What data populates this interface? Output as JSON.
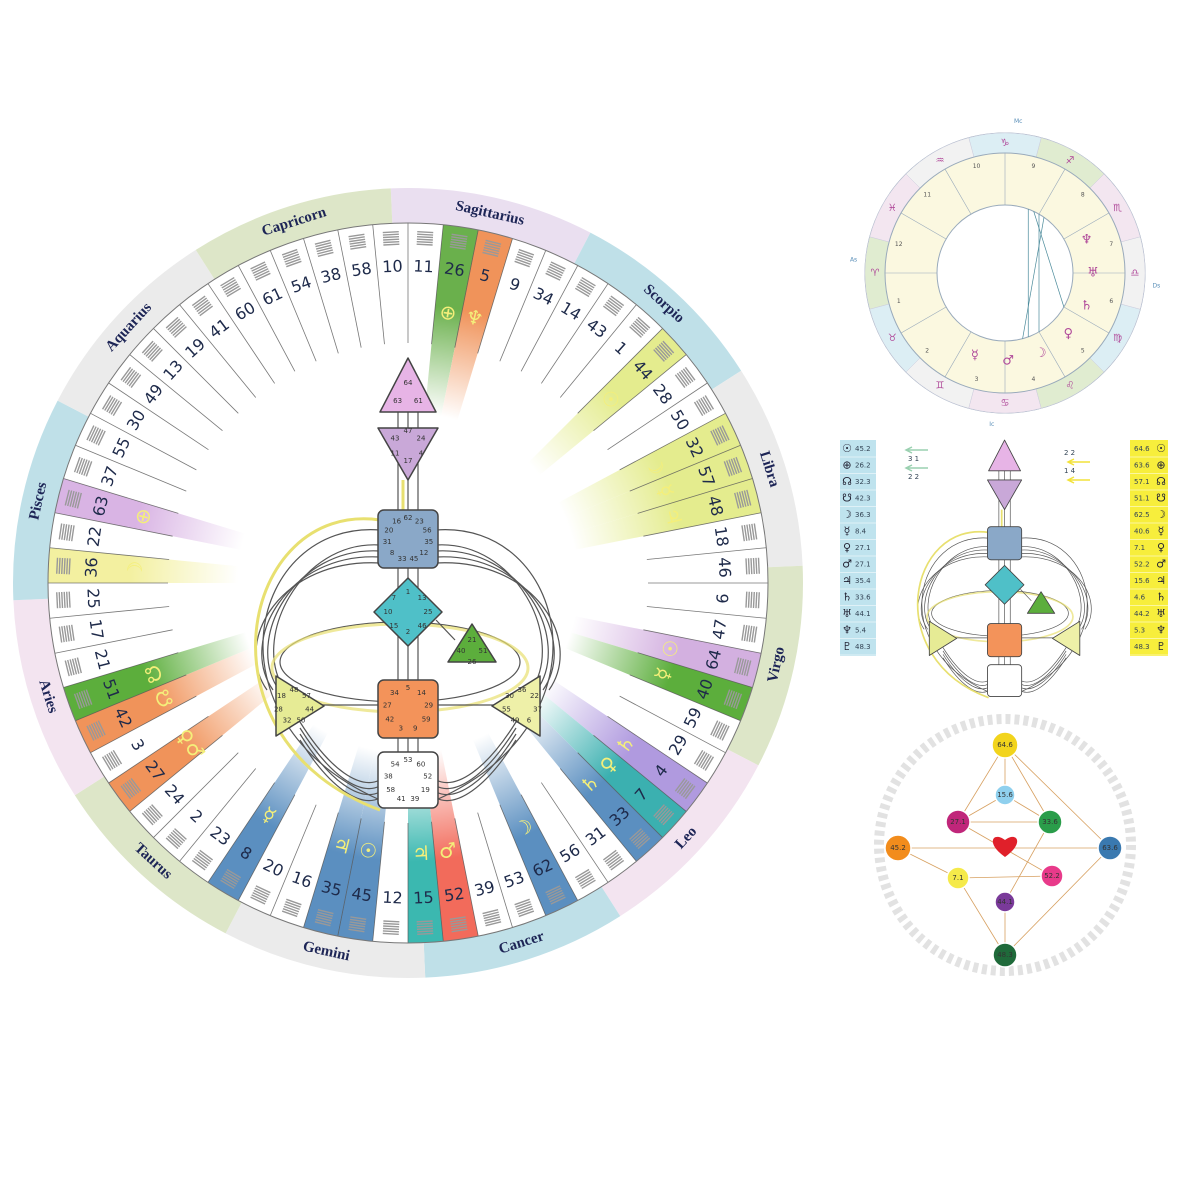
{
  "mandala": {
    "signs": [
      "Sagittarius",
      "Scorpio",
      "Libra",
      "Virgo",
      "Leo",
      "Cancer",
      "Gemini",
      "Taurus",
      "Aries",
      "Pisces",
      "Aquarius",
      "Capricorn"
    ],
    "sign_colors": [
      "#eadff0",
      "#bfe0e8",
      "#ebebeb",
      "#dde6c8",
      "#f3e4f0",
      "#bfe0e8",
      "#ebebeb",
      "#dde6c8",
      "#f3e4f0",
      "#bfe0e8",
      "#ebebeb",
      "#dde6c8"
    ],
    "gates": [
      11,
      26,
      5,
      9,
      34,
      14,
      43,
      1,
      44,
      28,
      50,
      32,
      57,
      48,
      18,
      46,
      6,
      47,
      64,
      40,
      59,
      29,
      4,
      7,
      33,
      31,
      56,
      62,
      53,
      39,
      52,
      15,
      12,
      45,
      35,
      16,
      20,
      8,
      23,
      2,
      24,
      27,
      3,
      42,
      51,
      21,
      17,
      25,
      36,
      22,
      63,
      37,
      55,
      30,
      49,
      13,
      19,
      41,
      60,
      61,
      54,
      38,
      58,
      10
    ],
    "gate_colors": [
      null,
      "#6ab04c",
      "#f0935a",
      null,
      null,
      null,
      null,
      null,
      "#e4ec8e",
      null,
      null,
      "#e4ec8e",
      "#e4ec8e",
      "#e4ec8e",
      null,
      null,
      null,
      null,
      "#d3b0e0",
      "#5cae3c",
      null,
      null,
      "#b09adf",
      "#3bb0b0",
      "#5b8fc0",
      null,
      null,
      "#5b8fc0",
      null,
      null,
      "#f26b5b",
      "#3bb8b0",
      null,
      "#5b8fc0",
      "#5b8fc0",
      null,
      null,
      "#5b8fc0",
      null,
      null,
      null,
      "#f0935a",
      null,
      "#f0935a",
      "#5cae3c",
      null,
      null,
      null,
      "#f3f0a0",
      null,
      "#d9b4e4",
      null,
      null,
      null,
      null,
      null,
      null,
      null,
      null,
      null,
      null,
      null,
      null,
      null
    ],
    "gate_symbols": [
      null,
      "⊕",
      "♆",
      null,
      null,
      null,
      null,
      null,
      "☉",
      null,
      null,
      "☽",
      "☿",
      "♃",
      null,
      null,
      null,
      null,
      "☉",
      "☿",
      null,
      null,
      "♄",
      "♀",
      "♄",
      null,
      null,
      "☽",
      null,
      null,
      "♂",
      "♃",
      null,
      "☉",
      "♃",
      null,
      null,
      "☿",
      null,
      null,
      null,
      "♀♂",
      null,
      "☋",
      "☊",
      null,
      null,
      null,
      "☽",
      null,
      "⊕",
      null,
      null,
      null,
      null,
      null,
      null,
      null,
      null,
      null,
      null,
      null,
      null,
      null
    ],
    "centers": {
      "head": [
        64,
        61,
        63
      ],
      "ajna": [
        47,
        24,
        4,
        17,
        11,
        43
      ],
      "throat": [
        62,
        23,
        56,
        35,
        12,
        45,
        33,
        8,
        31,
        20,
        16
      ],
      "g": [
        1,
        13,
        25,
        46,
        2,
        15,
        10,
        7
      ],
      "heart": [
        21,
        51,
        26,
        40
      ],
      "sacral": [
        5,
        14,
        29,
        59,
        9,
        3,
        42,
        27,
        34
      ],
      "root": [
        53,
        60,
        52,
        19,
        39,
        41,
        58,
        38,
        54
      ],
      "spleen": [
        48,
        57,
        44,
        50,
        32,
        28,
        18
      ],
      "solar_plexus": [
        36,
        22,
        37,
        6,
        49,
        55,
        30
      ]
    }
  },
  "astro": {
    "houses": [
      1,
      2,
      3,
      4,
      5,
      6,
      7,
      8,
      9,
      10,
      11,
      12
    ],
    "axes": [
      "Mc",
      "Ds",
      "Ic",
      "As"
    ],
    "sign_glyphs": [
      "♈",
      "♉",
      "♊",
      "♋",
      "♌",
      "♍",
      "♎",
      "♏",
      "♐",
      "♑",
      "♒",
      "♓"
    ],
    "planets": [
      "☿",
      "♂",
      "☽",
      "♀",
      "♄",
      "♅",
      "♆"
    ]
  },
  "design": {
    "symbols": [
      "☉",
      "⊕",
      "☊",
      "☋",
      "☽",
      "☿",
      "♀",
      "♂",
      "♃",
      "♄",
      "♅",
      "♆",
      "♇"
    ],
    "values": [
      45.2,
      26.2,
      32.3,
      42.3,
      36.3,
      8.4,
      27.1,
      27.1,
      35.4,
      33.6,
      44.1,
      5.4,
      48.3
    ]
  },
  "personality": {
    "symbols": [
      "☉",
      "⊕",
      "☊",
      "☋",
      "☽",
      "☿",
      "♀",
      "♂",
      "♃",
      "♄",
      "♅",
      "♆",
      "♇"
    ],
    "values": [
      64.6,
      63.6,
      57.1,
      51.1,
      62.5,
      40.6,
      7.1,
      52.2,
      15.6,
      4.6,
      44.2,
      5.3,
      48.3
    ]
  },
  "arrows": {
    "left": [
      "3 1",
      "2 2"
    ],
    "right": [
      "2 2",
      "1 4"
    ]
  },
  "energy": {
    "nodes": [
      {
        "label": "64.6",
        "color": "#f2d41c"
      },
      {
        "label": "15.6",
        "color": "#8fd0ee"
      },
      {
        "label": "27.1",
        "color": "#c0267a"
      },
      {
        "label": "33.6",
        "color": "#2a9d4a"
      },
      {
        "label": "63.6",
        "color": "#3a79b0"
      },
      {
        "label": "45.2",
        "color": "#f28c1c"
      },
      {
        "label": "7.1",
        "color": "#f5ea4a"
      },
      {
        "label": "52.2",
        "color": "#e83a8a"
      },
      {
        "label": "44.1",
        "color": "#7a3a9a"
      },
      {
        "label": "48.3",
        "color": "#1f6a3a"
      }
    ]
  }
}
